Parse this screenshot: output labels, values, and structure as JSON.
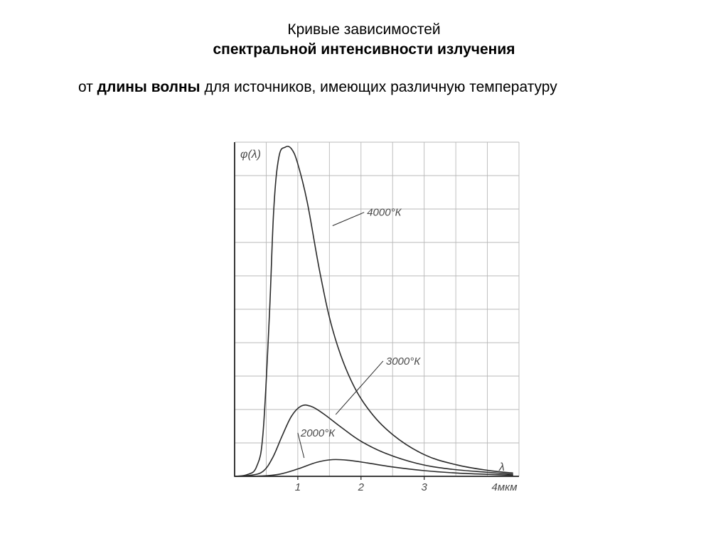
{
  "title": {
    "line1": "Кривые зависимостей",
    "line2": "спектральной интенсивности излучения"
  },
  "subtitle": {
    "prefix": "от ",
    "bold": "длины волны",
    "suffix": " для источников, имеющих различную температуру"
  },
  "chart": {
    "type": "line",
    "background_color": "#ffffff",
    "axis_color": "#222222",
    "grid_color": "#b8b8b8",
    "curve_color": "#2a2a2a",
    "label_color": "#4a4a4a",
    "label_fontsize": 15,
    "label_fontstyle": "italic",
    "tick_fontsize": 15,
    "curve_width": 1.6,
    "grid_width": 0.9,
    "axis_width": 1.8,
    "y_axis_label": "φ(λ)",
    "x_axis_label": "λ",
    "x_unit_label": "4мкм",
    "xlim": [
      0,
      4.5
    ],
    "ylim": [
      0,
      10
    ],
    "x_ticks": [
      1,
      2,
      3
    ],
    "x_tick_labels": [
      "1",
      "2",
      "3"
    ],
    "x_grid_step": 0.5,
    "y_grid_step": 1,
    "series": [
      {
        "name": "4000K",
        "label": "4000°К",
        "leader_from": [
          1.55,
          7.5
        ],
        "leader_to": [
          2.05,
          7.9
        ],
        "points": [
          [
            0.0,
            0.0
          ],
          [
            0.2,
            0.05
          ],
          [
            0.35,
            0.3
          ],
          [
            0.45,
            1.3
          ],
          [
            0.55,
            4.8
          ],
          [
            0.62,
            8.0
          ],
          [
            0.7,
            9.55
          ],
          [
            0.8,
            9.85
          ],
          [
            0.9,
            9.8
          ],
          [
            1.0,
            9.35
          ],
          [
            1.15,
            8.2
          ],
          [
            1.35,
            6.1
          ],
          [
            1.55,
            4.4
          ],
          [
            1.8,
            3.05
          ],
          [
            2.1,
            2.05
          ],
          [
            2.5,
            1.25
          ],
          [
            3.0,
            0.65
          ],
          [
            3.5,
            0.35
          ],
          [
            4.0,
            0.18
          ],
          [
            4.4,
            0.1
          ]
        ]
      },
      {
        "name": "3000K",
        "label": "3000°К",
        "leader_from": [
          1.6,
          1.85
        ],
        "leader_to": [
          2.35,
          3.45
        ],
        "points": [
          [
            0.0,
            0.0
          ],
          [
            0.25,
            0.03
          ],
          [
            0.45,
            0.15
          ],
          [
            0.6,
            0.55
          ],
          [
            0.75,
            1.2
          ],
          [
            0.9,
            1.8
          ],
          [
            1.05,
            2.1
          ],
          [
            1.2,
            2.1
          ],
          [
            1.4,
            1.88
          ],
          [
            1.7,
            1.45
          ],
          [
            2.0,
            1.05
          ],
          [
            2.4,
            0.68
          ],
          [
            2.9,
            0.38
          ],
          [
            3.4,
            0.22
          ],
          [
            4.0,
            0.12
          ],
          [
            4.4,
            0.06
          ]
        ]
      },
      {
        "name": "2000K",
        "label": "2000°К",
        "leader_from": [
          1.1,
          0.55
        ],
        "leader_to": [
          1.0,
          1.3
        ],
        "points": [
          [
            0.0,
            0.0
          ],
          [
            0.4,
            0.01
          ],
          [
            0.7,
            0.06
          ],
          [
            1.0,
            0.22
          ],
          [
            1.3,
            0.42
          ],
          [
            1.55,
            0.5
          ],
          [
            1.8,
            0.48
          ],
          [
            2.1,
            0.4
          ],
          [
            2.5,
            0.28
          ],
          [
            3.0,
            0.17
          ],
          [
            3.5,
            0.1
          ],
          [
            4.0,
            0.06
          ],
          [
            4.4,
            0.03
          ]
        ]
      }
    ]
  }
}
